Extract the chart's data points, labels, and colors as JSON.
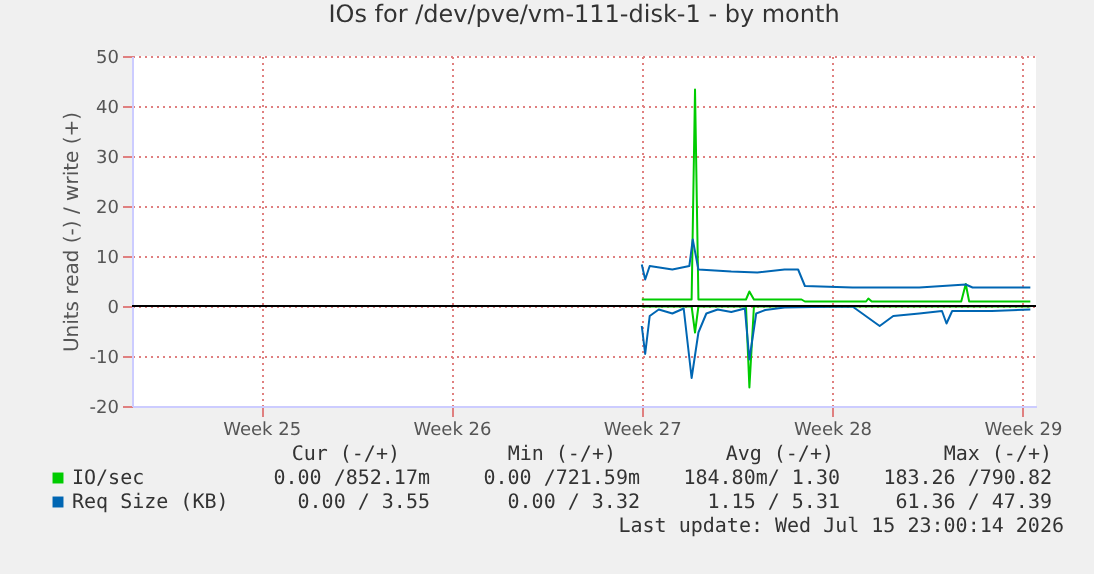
{
  "chart_data": {
    "type": "line",
    "title": "IOs for /dev/pve/vm-111-disk-1 - by month",
    "ylabel": "Units read (-) / write (+)",
    "xlim": [
      "2026-06-10T06:00",
      "2026-07-13T12:00"
    ],
    "xticks": [
      {
        "value": "2026-06-15",
        "label": "Week 25"
      },
      {
        "value": "2026-06-22",
        "label": "Week 26"
      },
      {
        "value": "2026-06-29",
        "label": "Week 27"
      },
      {
        "value": "2026-07-06",
        "label": "Week 28"
      },
      {
        "value": "2026-07-13",
        "label": "Week 29"
      }
    ],
    "ylim": [
      -20,
      50
    ],
    "yticks": [
      -20,
      -10,
      0,
      10,
      20,
      30,
      40,
      50
    ],
    "grid": true,
    "legend": "bottom left",
    "marker": "none",
    "line_style": "solid",
    "series": [
      {
        "name": "IO/sec",
        "color": "#00cc00",
        "x": [
          "2026-06-29T00:00",
          "2026-06-30T20:00",
          "2026-06-30T23:00",
          "2026-07-01T02:00",
          "2026-07-02T20:00",
          "2026-07-02T23:00",
          "2026-07-03T03:00",
          "2026-07-04T21:00",
          "2026-07-05T00:00",
          "2026-07-07T06:00",
          "2026-07-07T08:00",
          "2026-07-07T11:00",
          "2026-07-10T18:00",
          "2026-07-10T22:00",
          "2026-07-11T01:00",
          "2026-07-13T07:00"
        ],
        "values": [
          1.3,
          1.3,
          43.3,
          1.3,
          1.3,
          2.9,
          1.3,
          1.3,
          0.9,
          0.9,
          1.5,
          0.9,
          0.9,
          4.4,
          0.9,
          0.9
        ]
      },
      {
        "color": "#00cc00",
        "x": [
          "2026-06-29T00:00",
          "2026-06-30T20:00",
          "2026-06-30T23:00",
          "2026-07-01T02:00",
          "2026-07-02T20:00",
          "2026-07-02T23:00",
          "2026-07-03T03:00",
          "2026-07-13T07:00"
        ],
        "values": [
          -0.1,
          -0.1,
          -5.3,
          -0.1,
          -0.1,
          -16.3,
          -0.1,
          -0.1
        ]
      },
      {
        "name": "Req Size (KB)",
        "color": "#0066b3",
        "x": [
          "2026-06-29T00:00",
          "2026-06-29T03:00",
          "2026-06-29T07:00",
          "2026-06-30T03:00",
          "2026-06-30T18:00",
          "2026-06-30T21:00",
          "2026-07-01T02:00",
          "2026-07-02T07:00",
          "2026-07-03T06:00",
          "2026-07-04T06:00",
          "2026-07-04T18:00",
          "2026-07-05T00:00",
          "2026-07-06T18:00",
          "2026-07-09T05:00",
          "2026-07-10T22:00",
          "2026-07-11T04:00",
          "2026-07-13T07:00"
        ],
        "values": [
          8.3,
          5.3,
          8.0,
          7.3,
          8.0,
          13.3,
          7.3,
          6.9,
          6.7,
          7.3,
          7.3,
          4.0,
          3.7,
          3.7,
          4.3,
          3.7,
          3.7
        ]
      },
      {
        "color": "#0066b3",
        "x": [
          "2026-06-29T00:00",
          "2026-06-29T03:00",
          "2026-06-29T07:00",
          "2026-06-29T15:00",
          "2026-06-30T03:00",
          "2026-06-30T13:00",
          "2026-06-30T20:00",
          "2026-07-01T02:00",
          "2026-07-01T09:00",
          "2026-07-01T19:00",
          "2026-07-02T07:00",
          "2026-07-02T19:00",
          "2026-07-02T23:00",
          "2026-07-03T05:00",
          "2026-07-03T13:00",
          "2026-07-04T06:00",
          "2026-07-05T07:00",
          "2026-07-06T18:00",
          "2026-07-07T18:00",
          "2026-07-08T06:00",
          "2026-07-09T05:00",
          "2026-07-10T01:00",
          "2026-07-10T05:00",
          "2026-07-10T10:00",
          "2026-07-11T21:00",
          "2026-07-13T07:00"
        ],
        "values": [
          -4,
          -9.6,
          -2,
          -0.7,
          -1.5,
          -0.5,
          -14.4,
          -5.3,
          -1.5,
          -0.7,
          -1.2,
          -0.5,
          -10.7,
          -1.5,
          -0.8,
          -0.3,
          -0.2,
          -0.1,
          -4,
          -2,
          -1.5,
          -1.0,
          -3.5,
          -1.0,
          -1.0,
          -0.7
        ]
      }
    ],
    "ref_lines": [
      {
        "axis": "y",
        "value": 0,
        "color": "#000000"
      }
    ],
    "annotations": [
      "Cur (-/+)",
      "Min (-/+)",
      "Avg (-/+)",
      "Max (-/+)",
      "0.00 /852.17m",
      "0.00 /721.59m",
      "184.80m/  1.30",
      "183.26 /790.82",
      "0.00 /  3.55",
      "0.00 /  3.32",
      "1.15 /  5.31",
      "61.36 / 47.39",
      "Last update: Wed Jul 15 23:00:14 2026"
    ]
  }
}
